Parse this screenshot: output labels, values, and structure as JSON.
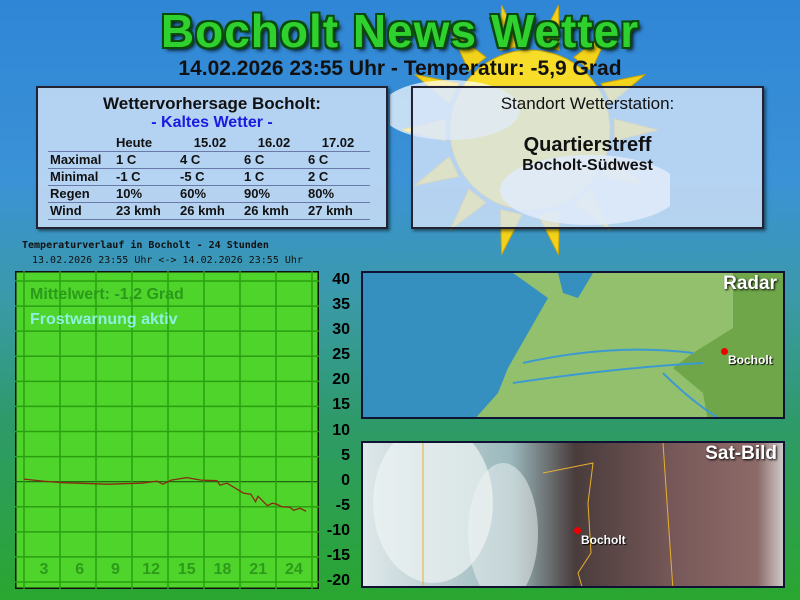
{
  "header": {
    "title": "Bocholt News Wetter",
    "subtitle": "14.02.2026 23:55 Uhr - Temperatur: -5,9 Grad"
  },
  "forecast": {
    "title": "Wettervorhersage Bocholt:",
    "condition": "- Kaltes Wetter -",
    "columns": [
      "Heute",
      "15.02",
      "16.02",
      "17.02"
    ],
    "rows": [
      {
        "label": "Maximal",
        "values": [
          "1  C",
          "4  C",
          "6  C",
          "6  C"
        ]
      },
      {
        "label": "Minimal",
        "values": [
          "-1  C",
          "-5  C",
          "1  C",
          "2  C"
        ]
      },
      {
        "label": "Regen",
        "values": [
          "10%",
          "60%",
          "90%",
          "80%"
        ]
      },
      {
        "label": "Wind",
        "values": [
          "23 kmh",
          "26 kmh",
          "26 kmh",
          "27 kmh"
        ]
      }
    ]
  },
  "station": {
    "heading": "Standort Wetterstation:",
    "name": "Quartierstreff",
    "location": "Bocholt-Südwest"
  },
  "chart_data": {
    "type": "line",
    "title": "Temperaturverlauf in Bocholt - 24 Stunden",
    "subtitle": "13.02.2026 23:55 Uhr <-> 14.02.2026 23:55 Uhr",
    "annotations": [
      "Mittelwert: -1,2 Grad",
      "Frostwarnung aktiv"
    ],
    "x_tick_labels": [
      "3",
      "6",
      "9",
      "12",
      "15",
      "18",
      "21",
      "24"
    ],
    "y_tick_labels": [
      "40",
      "35",
      "30",
      "25",
      "20",
      "15",
      "10",
      "5",
      "0",
      "-5",
      "-10",
      "-15",
      "-20"
    ],
    "ylim": [
      -20,
      40
    ],
    "xlim": [
      0,
      24
    ],
    "grid": true,
    "colors": {
      "background": "#4ed42a",
      "line": "#8a2a10",
      "grid": "#2aa010"
    },
    "x": [
      0,
      1.6,
      3.25,
      7.1,
      9.9,
      11.2,
      11.7,
      12.4,
      13.7,
      14.9,
      16.25,
      16.5,
      17.1,
      18.5,
      19.1,
      19.5,
      19.7,
      20.5,
      20.9,
      21.3,
      21.7,
      22.4,
      22.7,
      23.25,
      23.75
    ],
    "y": [
      0.5,
      0.1,
      -0.2,
      -0.5,
      -0.3,
      0.1,
      -0.5,
      0.3,
      0.8,
      0.3,
      0.2,
      -0.7,
      -0.3,
      -2.3,
      -2.5,
      -4,
      -2.9,
      -4.8,
      -4.3,
      -4.5,
      -5,
      -5.1,
      -5.7,
      -5.3,
      -5.9
    ]
  },
  "radar": {
    "label": "Radar",
    "city": "Bocholt"
  },
  "sat": {
    "label": "Sat-Bild",
    "city": "Bocholt"
  }
}
